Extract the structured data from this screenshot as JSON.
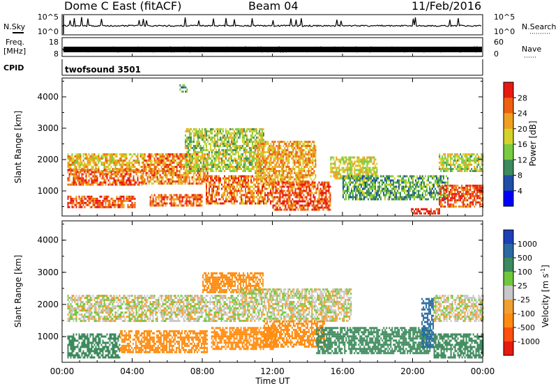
{
  "header": {
    "title": "Dome C East (fitACF)",
    "beam": "Beam 04",
    "date": "11/Feb/2016"
  },
  "summary_panels": {
    "nsky": {
      "left_label": "N.Sky",
      "ticks": [
        "10^5",
        "10^0"
      ],
      "right_label": "N.Search",
      "right_ticks": [
        "10^5",
        "10^0"
      ]
    },
    "freq": {
      "left_label_1": "Freq.",
      "left_label_2": "[MHz]",
      "ticks": [
        "18",
        "8"
      ],
      "right_label": "Nave",
      "right_ticks": [
        "60",
        "0"
      ]
    },
    "cpid": {
      "left_label": "CPID",
      "program": "twofsound 3501"
    }
  },
  "power_panel": {
    "ylabel": "Slant Range [km]",
    "yticks": [
      "4000",
      "3000",
      "2000",
      "1000"
    ],
    "colorbar_label": "Power [dB]",
    "colorbar_ticks": [
      "28",
      "24",
      "20",
      "16",
      "12",
      "8",
      "4"
    ],
    "colors": [
      "#0000ff",
      "#204ea6",
      "#3d8a5c",
      "#79cc3f",
      "#d4d22a",
      "#f0a020",
      "#ee6010",
      "#e81a10"
    ]
  },
  "velocity_panel": {
    "ylabel": "Slant Range [km]",
    "yticks": [
      "4000",
      "3000",
      "2000",
      "1000"
    ],
    "colorbar_label_main": "Velocity",
    "colorbar_label_unit": "[m s",
    "colorbar_label_exp": "-1",
    "colorbar_label_close": "]",
    "colorbar_ticks": [
      "1000",
      "500",
      "100",
      "25",
      "-25",
      "-100",
      "-500",
      "-1000"
    ],
    "colors": [
      "#1d3fb8",
      "#2a6aa0",
      "#3d8a5c",
      "#6fc83c",
      "#c8c8c8",
      "#f0a030",
      "#ff8c10",
      "#ff5010",
      "#e81a10"
    ]
  },
  "time_axis": {
    "label": "Time UT",
    "ticks": [
      "00:00",
      "04:00",
      "08:00",
      "12:00",
      "16:00",
      "20:00",
      "00:00"
    ]
  },
  "chart_data": [
    {
      "type": "heatmap",
      "title": "Power",
      "xlabel": "Time UT",
      "ylabel": "Slant Range [km]",
      "x_range_hours": [
        0,
        24
      ],
      "ylim": [
        200,
        4600
      ],
      "colorbar": {
        "label": "Power [dB]",
        "ticks": [
          28,
          24,
          20,
          16,
          12,
          8,
          4
        ]
      },
      "regions": [
        {
          "t0": 0.3,
          "t1": 4.6,
          "r0": 1600,
          "r1": 2200,
          "power_db": 20
        },
        {
          "t0": 0.3,
          "t1": 4.6,
          "r0": 1200,
          "r1": 1700,
          "power_db": 26
        },
        {
          "t0": 0.3,
          "t1": 4.2,
          "r0": 500,
          "r1": 850,
          "power_db": 27
        },
        {
          "t0": 4.6,
          "t1": 8.3,
          "r0": 1200,
          "r1": 2200,
          "power_db": 24
        },
        {
          "t0": 5.0,
          "t1": 8.0,
          "r0": 500,
          "r1": 900,
          "power_db": 26
        },
        {
          "t0": 7.0,
          "t1": 11.5,
          "r0": 1600,
          "r1": 3000,
          "power_db": 16
        },
        {
          "t0": 8.2,
          "t1": 12.0,
          "r0": 600,
          "r1": 1500,
          "power_db": 25
        },
        {
          "t0": 11.0,
          "t1": 14.5,
          "r0": 1200,
          "r1": 2600,
          "power_db": 22
        },
        {
          "t0": 12.0,
          "t1": 15.3,
          "r0": 400,
          "r1": 1300,
          "power_db": 27
        },
        {
          "t0": 15.3,
          "t1": 18.0,
          "r0": 1400,
          "r1": 2100,
          "power_db": 18
        },
        {
          "t0": 16.0,
          "t1": 22.0,
          "r0": 700,
          "r1": 1500,
          "power_db": 12
        },
        {
          "t0": 19.9,
          "t1": 21.5,
          "r0": 250,
          "r1": 450,
          "power_db": 30
        },
        {
          "t0": 21.5,
          "t1": 24.0,
          "r0": 1600,
          "r1": 2200,
          "power_db": 16
        },
        {
          "t0": 21.5,
          "t1": 24.0,
          "r0": 500,
          "r1": 1200,
          "power_db": 27
        },
        {
          "t0": 6.7,
          "t1": 7.1,
          "r0": 4150,
          "r1": 4400,
          "power_db": 12
        }
      ]
    },
    {
      "type": "heatmap",
      "title": "Velocity",
      "xlabel": "Time UT",
      "ylabel": "Slant Range [km]",
      "x_range_hours": [
        0,
        24
      ],
      "ylim": [
        200,
        4600
      ],
      "colorbar": {
        "label": "Velocity [m s-1]",
        "ticks": [
          1000,
          500,
          100,
          25,
          -25,
          -100,
          -500,
          -1000
        ]
      },
      "regions": [
        {
          "t0": 0.3,
          "t1": 10.0,
          "r0": 1500,
          "r1": 2300,
          "velocity_ms": 0
        },
        {
          "t0": 0.3,
          "t1": 3.3,
          "r0": 350,
          "r1": 1100,
          "velocity_ms": 180
        },
        {
          "t0": 3.3,
          "t1": 8.3,
          "r0": 500,
          "r1": 1200,
          "velocity_ms": -300
        },
        {
          "t0": 8.5,
          "t1": 12.2,
          "r0": 600,
          "r1": 1300,
          "velocity_ms": -300
        },
        {
          "t0": 8.0,
          "t1": 11.5,
          "r0": 2400,
          "r1": 3000,
          "velocity_ms": -150
        },
        {
          "t0": 10.0,
          "t1": 16.5,
          "r0": 1500,
          "r1": 2500,
          "velocity_ms": 0
        },
        {
          "t0": 11.5,
          "t1": 15.0,
          "r0": 700,
          "r1": 1500,
          "velocity_ms": -200
        },
        {
          "t0": 14.5,
          "t1": 21.0,
          "r0": 500,
          "r1": 1300,
          "velocity_ms": 200
        },
        {
          "t0": 20.5,
          "t1": 21.2,
          "r0": 700,
          "r1": 2200,
          "velocity_ms": 700
        },
        {
          "t0": 21.2,
          "t1": 24.0,
          "r0": 1500,
          "r1": 2300,
          "velocity_ms": 0
        },
        {
          "t0": 21.2,
          "t1": 24.0,
          "r0": 350,
          "r1": 1100,
          "velocity_ms": 200
        }
      ]
    }
  ]
}
